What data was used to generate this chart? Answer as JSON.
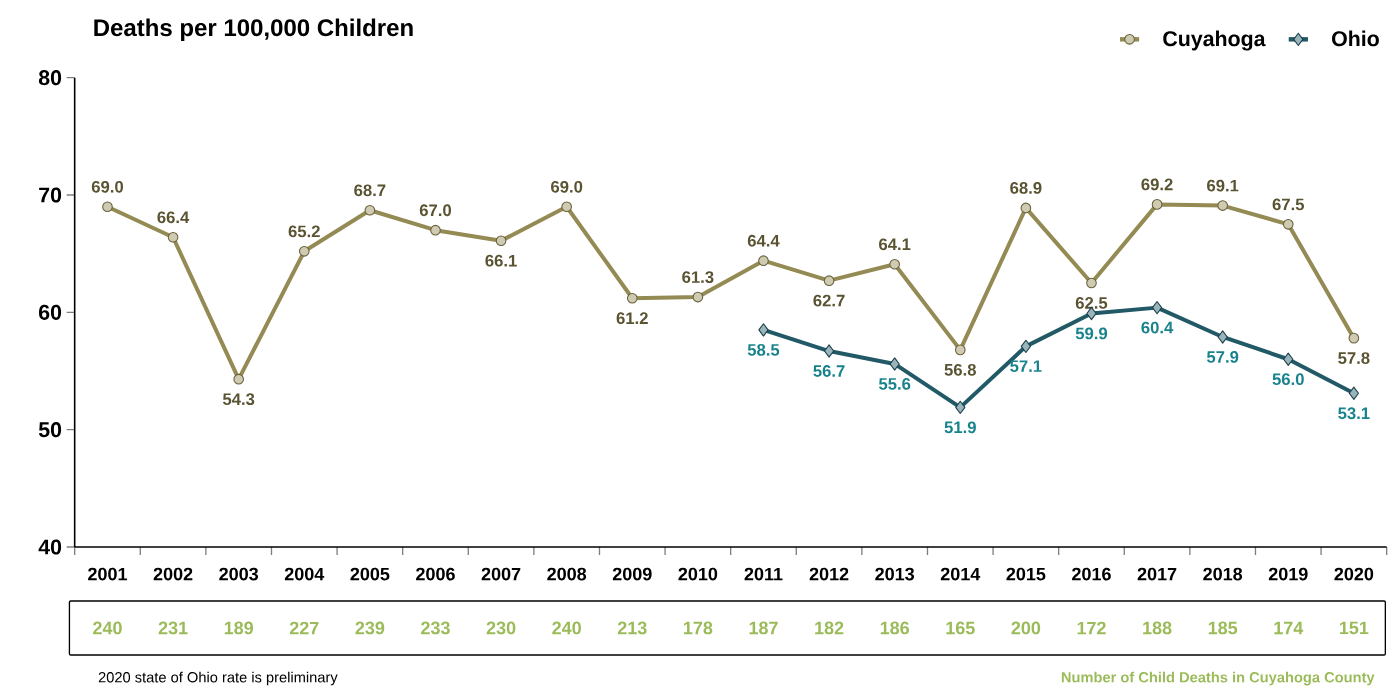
{
  "chart_data": {
    "type": "line",
    "title": "Deaths per 100,000 Children",
    "categories": [
      "2001",
      "2002",
      "2003",
      "2004",
      "2005",
      "2006",
      "2007",
      "2008",
      "2009",
      "2010",
      "2011",
      "2012",
      "2013",
      "2014",
      "2015",
      "2016",
      "2017",
      "2018",
      "2019",
      "2020"
    ],
    "series": [
      {
        "name": "Cuyahoga",
        "color": "#948a54",
        "marker": "circle",
        "values": [
          69.0,
          66.4,
          54.3,
          65.2,
          68.7,
          67.0,
          66.1,
          69.0,
          61.2,
          61.3,
          64.4,
          62.7,
          64.1,
          56.8,
          68.9,
          62.5,
          69.2,
          69.1,
          67.5,
          57.8
        ],
        "value_labels": [
          "69.0",
          "66.4",
          "54.3",
          "65.2",
          "68.7",
          "67.0",
          "66.1",
          "69.0",
          "61.2",
          "61.3",
          "64.4",
          "62.7",
          "64.1",
          "56.8",
          "68.9",
          "62.5",
          "69.2",
          "69.1",
          "67.5",
          "57.8"
        ]
      },
      {
        "name": "Ohio",
        "color": "#215967",
        "marker": "diamond",
        "values": [
          null,
          null,
          null,
          null,
          null,
          null,
          null,
          null,
          null,
          null,
          58.5,
          56.7,
          55.6,
          51.9,
          57.1,
          59.9,
          60.4,
          57.9,
          56.0,
          53.1
        ],
        "value_labels": [
          null,
          null,
          null,
          null,
          null,
          null,
          null,
          null,
          null,
          null,
          "58.5",
          "56.7",
          "55.6",
          "51.9",
          "57.1",
          "59.9",
          "60.4",
          "57.9",
          "56.0",
          "53.1"
        ]
      }
    ],
    "ylim": [
      40,
      80
    ],
    "yticks": [
      40,
      50,
      60,
      70,
      80
    ],
    "legend": "top right",
    "grid": false,
    "annotations": [
      "2020 state of Ohio rate is preliminary",
      "Number of Child Deaths in Cuyahoga County",
      "240",
      "231",
      "189",
      "227",
      "239",
      "233",
      "230",
      "240",
      "213",
      "178",
      "187",
      "182",
      "186",
      "165",
      "200",
      "172",
      "188",
      "185",
      "174",
      "151"
    ]
  }
}
